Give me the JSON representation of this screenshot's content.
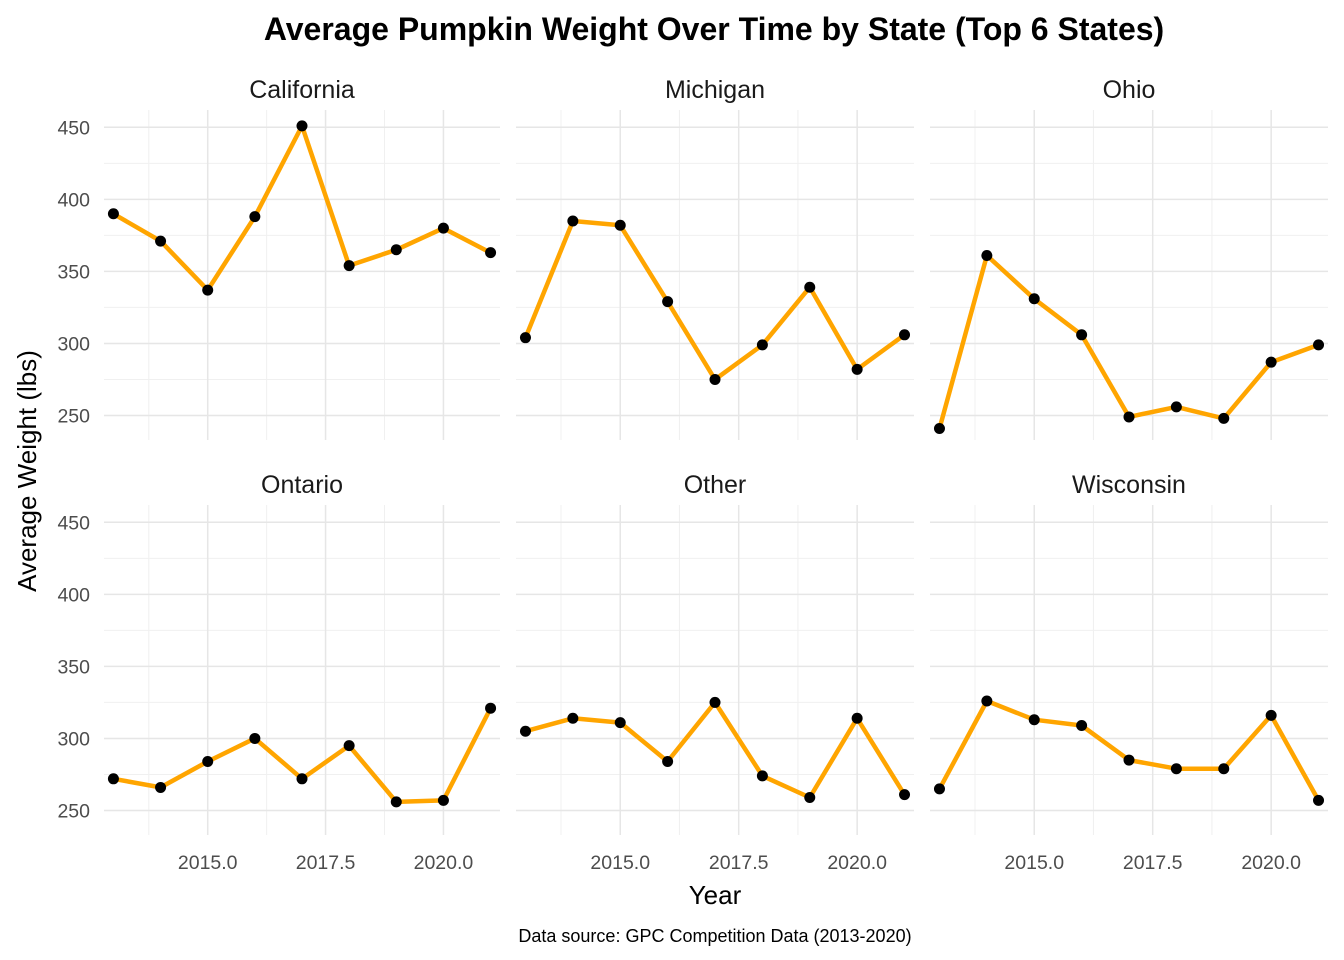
{
  "chart_data": {
    "type": "line",
    "title": "Average Pumpkin Weight Over Time by State (Top 6 States)",
    "xlabel": "Year",
    "ylabel": "Average Weight (lbs)",
    "caption": "Data source: GPC Competition Data (2013-2020)",
    "xlim": [
      2012.8,
      2021.2
    ],
    "ylim": [
      233,
      462
    ],
    "x_ticks": [
      2015.0,
      2017.5,
      2020.0
    ],
    "x_tick_labels": [
      "2015.0",
      "2017.5",
      "2020.0"
    ],
    "y_ticks": [
      250,
      300,
      350,
      400,
      450
    ],
    "y_tick_labels": [
      "250",
      "300",
      "350",
      "400",
      "450"
    ],
    "grid": true,
    "legend": "none",
    "line_color": "#FFA500",
    "point_color": "#000000",
    "x": [
      2013,
      2014,
      2015,
      2016,
      2017,
      2018,
      2019,
      2020,
      2021
    ],
    "panels": [
      {
        "name": "California",
        "values": [
          390,
          371,
          337,
          388,
          451,
          354,
          365,
          380,
          363
        ]
      },
      {
        "name": "Michigan",
        "values": [
          304,
          385,
          382,
          329,
          275,
          299,
          339,
          282,
          306
        ]
      },
      {
        "name": "Ohio",
        "values": [
          241,
          361,
          331,
          306,
          249,
          256,
          248,
          287,
          299
        ]
      },
      {
        "name": "Ontario",
        "values": [
          272,
          266,
          284,
          300,
          272,
          295,
          256,
          257,
          321
        ]
      },
      {
        "name": "Other",
        "values": [
          305,
          314,
          311,
          284,
          325,
          274,
          259,
          314,
          261
        ]
      },
      {
        "name": "Wisconsin",
        "values": [
          265,
          326,
          313,
          309,
          285,
          279,
          279,
          316,
          257
        ]
      }
    ]
  }
}
